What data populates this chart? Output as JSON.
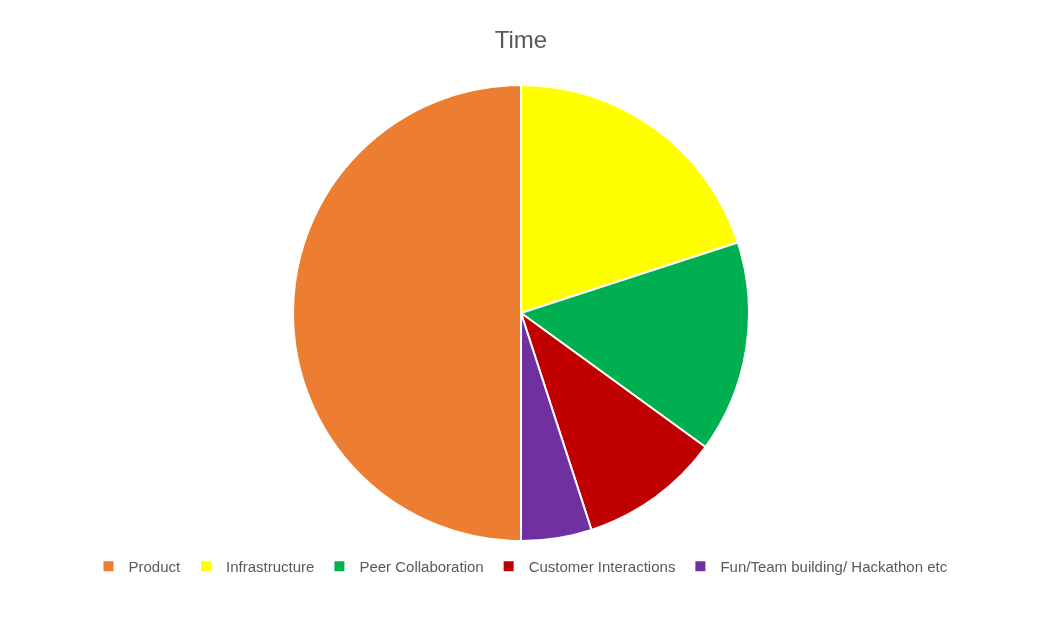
{
  "chart_data": {
    "type": "pie",
    "title": "Time",
    "categories": [
      "Product",
      "Infrastructure",
      "Peer Collaboration",
      "Customer Interactions",
      "Fun/Team building/ Hackathon etc"
    ],
    "values": [
      50,
      20,
      15,
      10,
      5
    ],
    "colors": [
      "#ed7d31",
      "#ffff00",
      "#00b050",
      "#c00000",
      "#7030a0"
    ],
    "legend": "bottom"
  }
}
